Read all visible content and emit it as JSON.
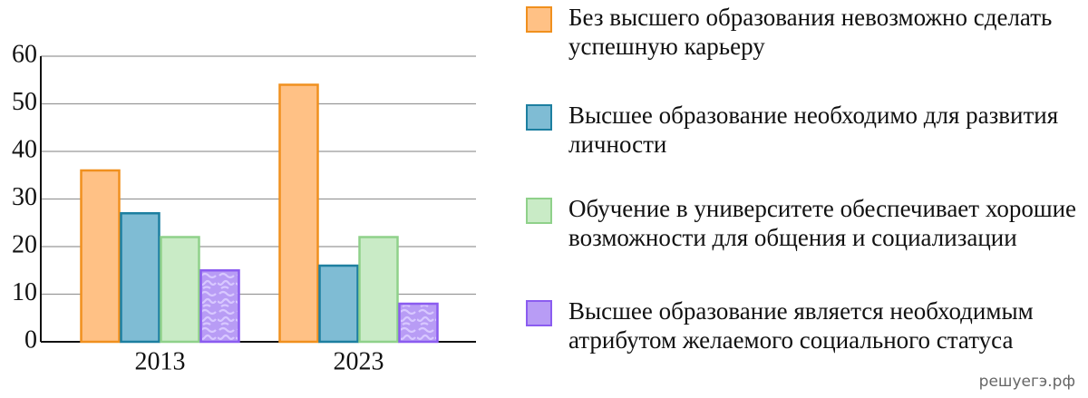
{
  "chart_data": {
    "type": "bar",
    "categories": [
      "2013",
      "2023"
    ],
    "series": [
      {
        "name": "Без высшего образования невозможно сделать успешную карьеру",
        "color": "#ffc185",
        "stroke": "#f0901e",
        "values": [
          36,
          54
        ]
      },
      {
        "name": "Высшее образование необходимо для развития личности",
        "color": "#7fbcd4",
        "stroke": "#1d7fa0",
        "values": [
          27,
          16
        ]
      },
      {
        "name": "Обучение в университете обеспечивает хорошие возможности для общения и социализации",
        "color": "#c9ebc6",
        "stroke": "#8fd18a",
        "values": [
          22,
          22
        ]
      },
      {
        "name": "Высшее образование является необходимым атрибутом желаемого социального статуса",
        "color": "#b89cf5",
        "stroke": "#8b5cf0",
        "pattern": "squiggle",
        "values": [
          15,
          8
        ]
      }
    ],
    "ylim": [
      0,
      60
    ],
    "yticks": [
      0,
      10,
      20,
      30,
      40,
      50,
      60
    ],
    "grid": true,
    "legend": "right"
  },
  "watermark": "решуегэ.рф"
}
